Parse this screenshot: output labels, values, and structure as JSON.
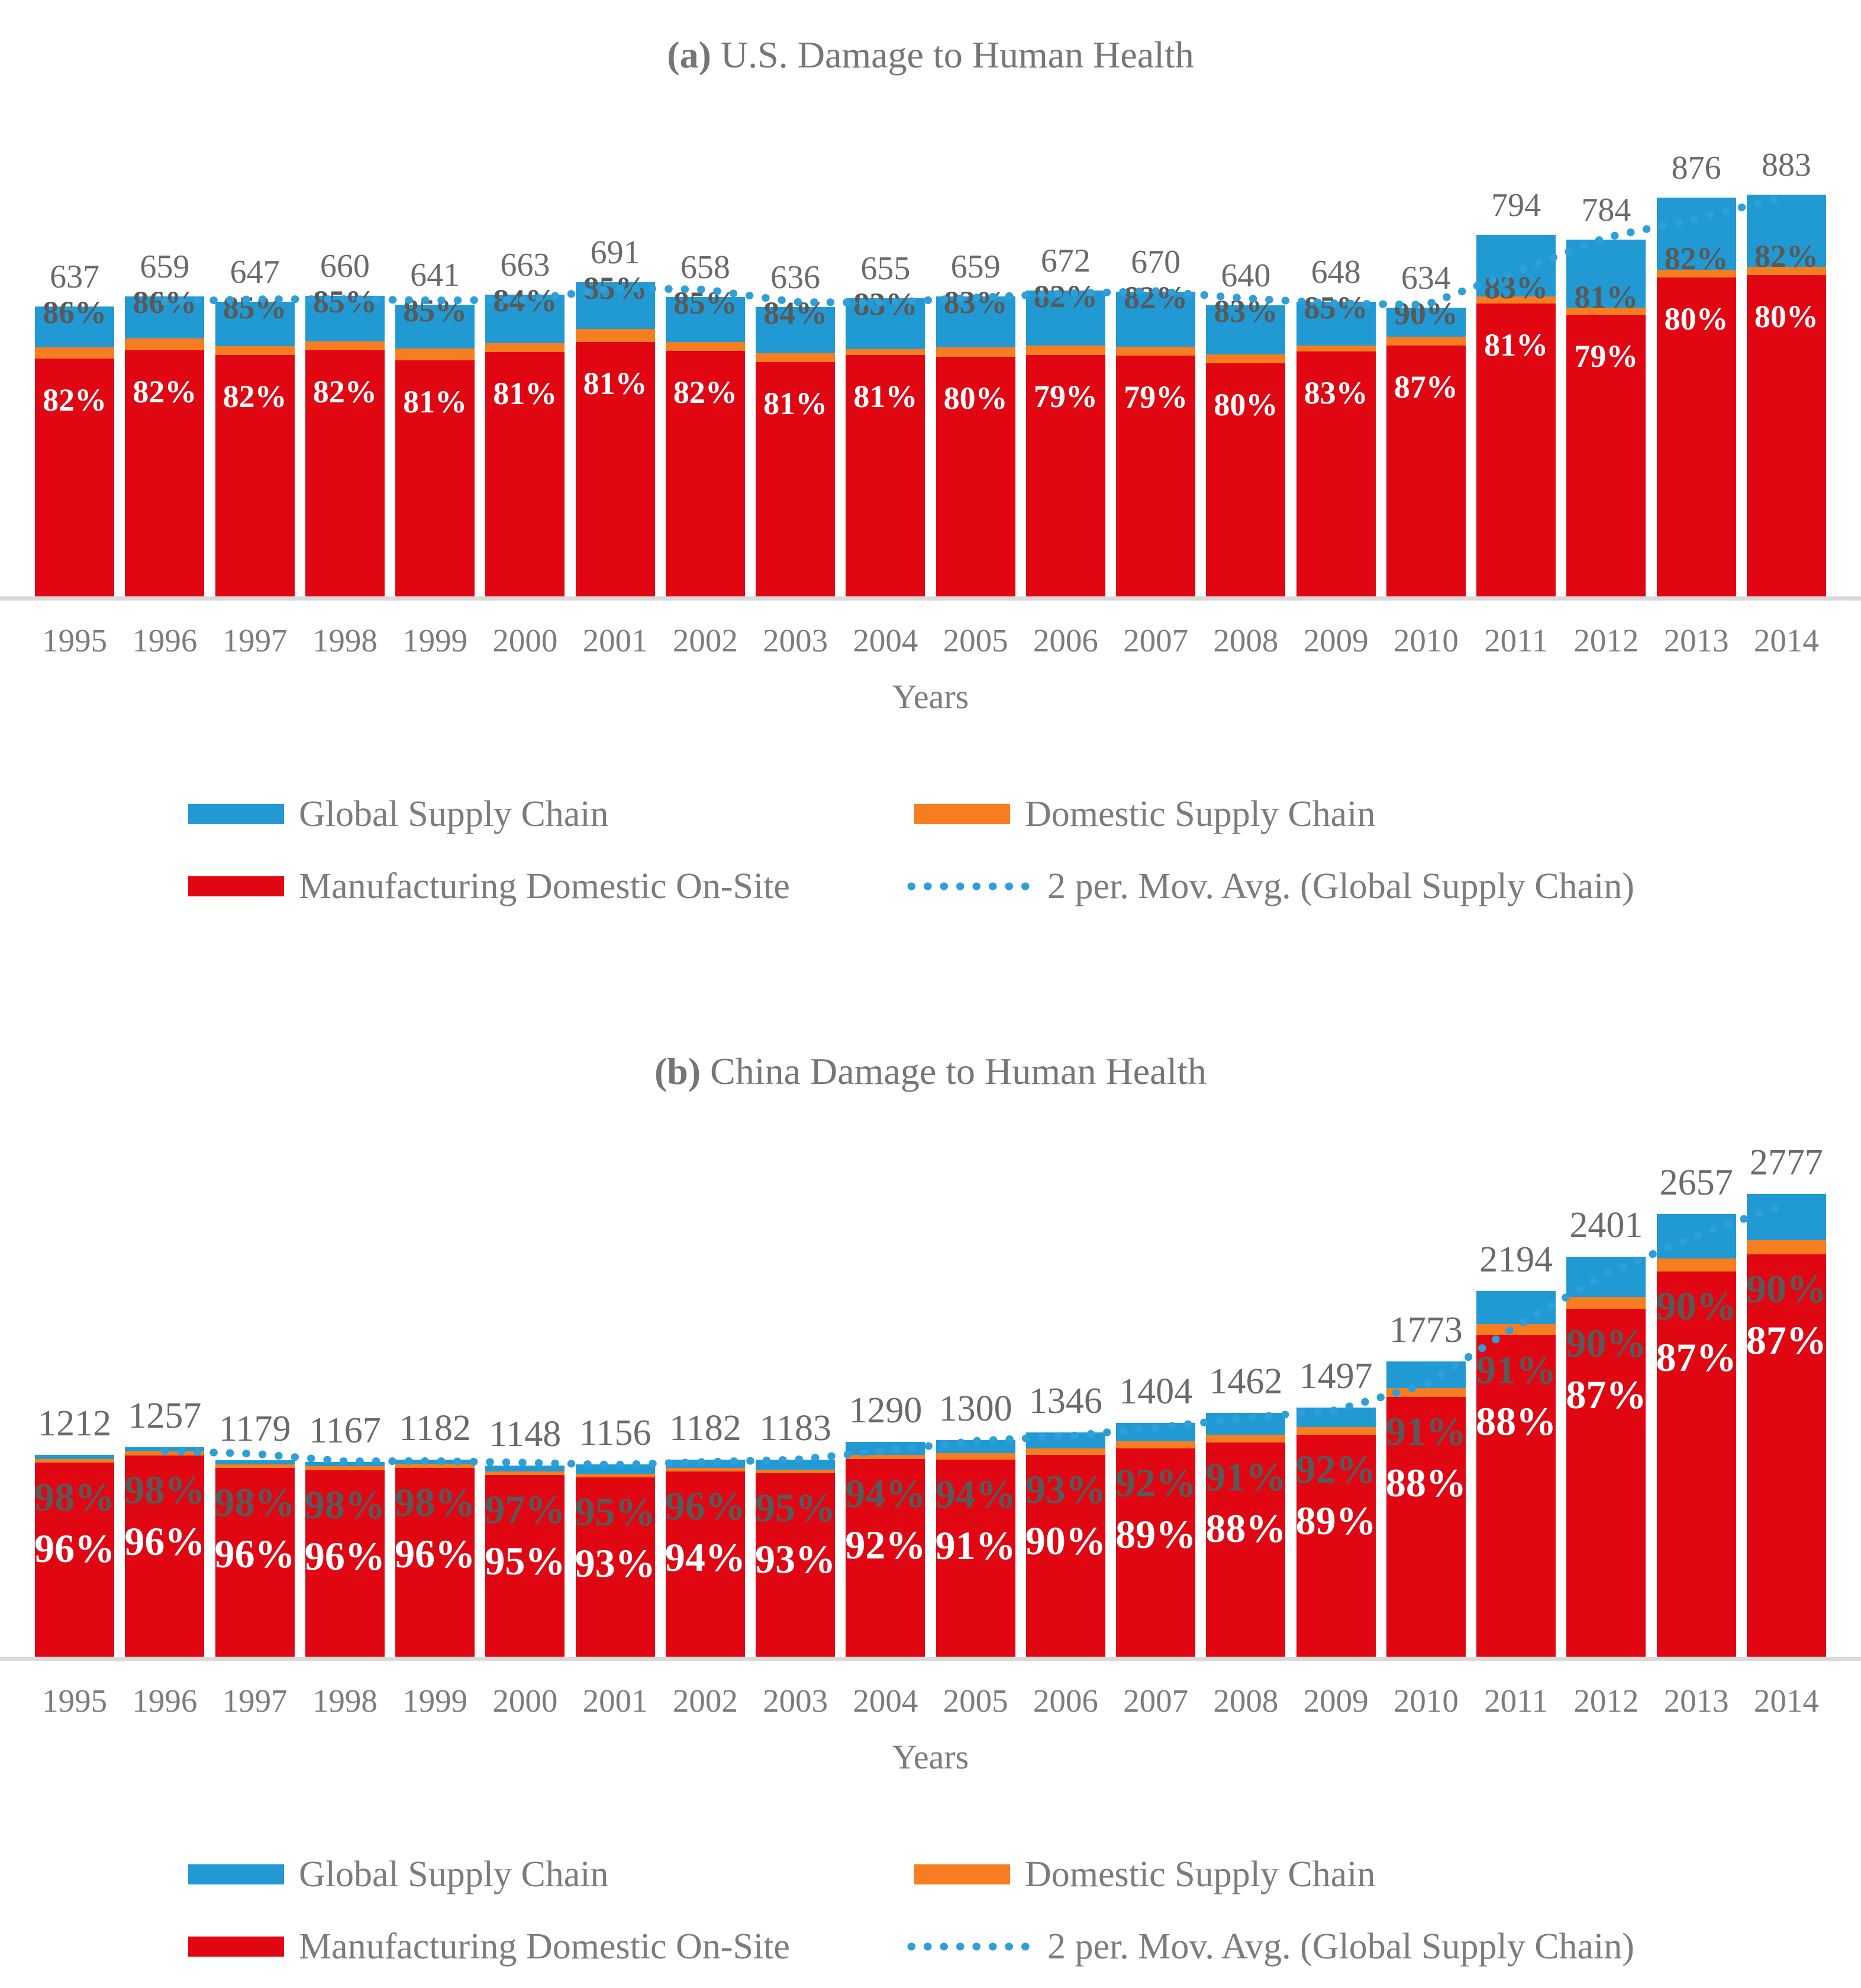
{
  "chart_data": [
    {
      "type": "bar",
      "stacked": true,
      "title_prefix": "(a)",
      "title_rest": " U.S. Damage to Human Health",
      "xlabel": "Years",
      "categories": [
        1995,
        1996,
        1997,
        1998,
        1999,
        2000,
        2001,
        2002,
        2003,
        2004,
        2005,
        2006,
        2007,
        2008,
        2009,
        2010,
        2011,
        2012,
        2013,
        2014
      ],
      "totals": [
        637,
        659,
        647,
        660,
        641,
        663,
        691,
        658,
        636,
        655,
        659,
        672,
        670,
        640,
        648,
        634,
        794,
        784,
        876,
        883
      ],
      "domestic_cum_pct": [
        86,
        86,
        85,
        85,
        85,
        84,
        85,
        85,
        84,
        83,
        83,
        82,
        82,
        83,
        85,
        90,
        83,
        81,
        82,
        82
      ],
      "onsite_pct": [
        82,
        82,
        82,
        82,
        81,
        81,
        81,
        82,
        81,
        81,
        80,
        79,
        79,
        80,
        83,
        87,
        81,
        79,
        80,
        80
      ],
      "outer_share_labels": [
        "86%",
        "86%",
        "85%",
        "85%",
        "85%",
        "84%",
        "85%",
        "85%",
        "84%",
        "83%",
        "83%",
        "82%",
        "82%",
        "83%",
        "85%",
        "90%",
        "83%",
        "81%",
        "82%",
        "82%"
      ],
      "inner_share_labels": [
        "82%",
        "82%",
        "82%",
        "82%",
        "81%",
        "81%",
        "81%",
        "82%",
        "81%",
        "81%",
        "80%",
        "79%",
        "79%",
        "80%",
        "83%",
        "87%",
        "81%",
        "79%",
        "80%",
        "80%"
      ],
      "gray_label_low_flags": [
        false,
        false,
        false,
        false,
        false,
        false,
        false,
        false,
        false,
        false,
        false,
        false,
        false,
        false,
        false,
        false,
        true,
        true,
        true,
        true
      ],
      "moving_average": {
        "name": "2 per. Mov. Avg. (Global Supply Chain)",
        "period": 2
      },
      "ylim": [
        0,
        930
      ],
      "grid": false,
      "legend_position": "bottom"
    },
    {
      "type": "bar",
      "stacked": true,
      "title_prefix": "(b)",
      "title_rest": " China Damage to Human Health",
      "xlabel": "Years",
      "categories": [
        1995,
        1996,
        1997,
        1998,
        1999,
        2000,
        2001,
        2002,
        2003,
        2004,
        2005,
        2006,
        2007,
        2008,
        2009,
        2010,
        2011,
        2012,
        2013,
        2014
      ],
      "totals": [
        1212,
        1257,
        1179,
        1167,
        1182,
        1148,
        1156,
        1182,
        1183,
        1290,
        1300,
        1346,
        1404,
        1462,
        1497,
        1773,
        2194,
        2401,
        2657,
        2777
      ],
      "domestic_cum_pct": [
        98,
        98,
        98,
        98,
        98,
        97,
        95,
        96,
        95,
        94,
        94,
        93,
        92,
        91,
        92,
        91,
        91,
        90,
        90,
        90
      ],
      "onsite_pct": [
        96,
        96,
        96,
        96,
        96,
        95,
        93,
        94,
        93,
        92,
        91,
        90,
        89,
        88,
        89,
        88,
        88,
        87,
        87,
        87
      ],
      "outer_share_labels": [
        "98%",
        "98%",
        "98%",
        "98%",
        "98%",
        "97%",
        "95%",
        "96%",
        "95%",
        "94%",
        "94%",
        "93%",
        "92%",
        "91%",
        "92%",
        "91%",
        "91%",
        "90%",
        "90%",
        "90%"
      ],
      "inner_share_labels": [
        "96%",
        "96%",
        "96%",
        "96%",
        "96%",
        "95%",
        "93%",
        "94%",
        "93%",
        "92%",
        "91%",
        "90%",
        "89%",
        "88%",
        "89%",
        "88%",
        "88%",
        "87%",
        "87%",
        "87%"
      ],
      "gray_label_low_flags": [
        false,
        false,
        false,
        false,
        false,
        false,
        false,
        false,
        false,
        false,
        false,
        false,
        false,
        false,
        false,
        false,
        false,
        false,
        false,
        false
      ],
      "moving_average": {
        "name": "2 per. Mov. Avg. (Global Supply Chain)",
        "period": 2
      },
      "ylim": [
        0,
        2900
      ],
      "grid": false,
      "legend_position": "bottom"
    }
  ],
  "legend": {
    "global": "Global Supply Chain",
    "domestic": "Domestic Supply Chain",
    "onsite": "Manufacturing Domestic On-Site",
    "ma": "2 per. Mov. Avg. (Global Supply Chain)"
  },
  "colors": {
    "red": "#e00713",
    "orange": "#f67e20",
    "blue": "#219ad3",
    "ma_line": "#2e9fd8",
    "axis": "#d9d9d9",
    "title_gray": "#767676",
    "total_gray": "#6a6a6a",
    "pct_gray": "#595959",
    "text_gray": "#7c7c7c"
  }
}
